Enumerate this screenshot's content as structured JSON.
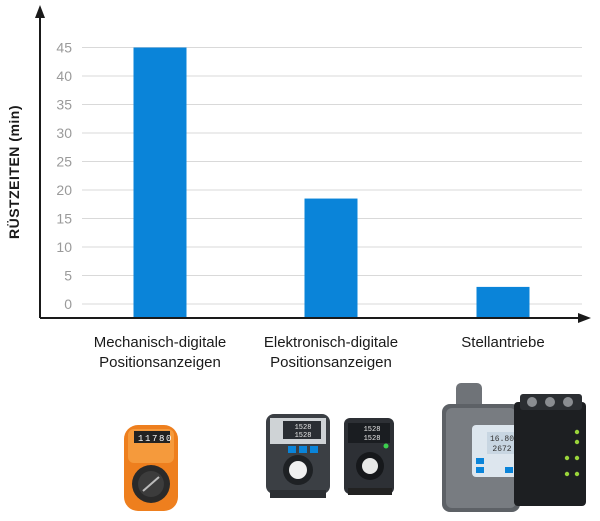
{
  "chart_data": {
    "type": "bar",
    "title": "",
    "xlabel": "",
    "ylabel": "RÜSTZEITEN (min)",
    "ylim": [
      0,
      50
    ],
    "yticks": [
      0,
      5,
      10,
      15,
      20,
      25,
      30,
      35,
      40,
      45
    ],
    "grid": true,
    "categories": [
      [
        "Mechanisch-digitale",
        "Positionsanzeigen"
      ],
      [
        "Elektronisch-digitale",
        "Positionsanzeigen"
      ],
      [
        "Stellantriebe"
      ]
    ],
    "values": [
      45,
      18.5,
      3
    ],
    "colors": {
      "bar": "#0a84d9",
      "axis": "#1a1a1a",
      "grid": "#d9d9d9"
    }
  },
  "products": [
    {
      "icon": "mechanical-position-indicator-icon",
      "display": [
        "1",
        "1",
        "7",
        "8",
        "0"
      ]
    },
    {
      "icon": "electronic-position-indicator-icon",
      "display": [
        "1528",
        "1528"
      ]
    },
    {
      "icon": "servo-actuator-icon",
      "display": [
        "16.80",
        "2672"
      ]
    }
  ]
}
